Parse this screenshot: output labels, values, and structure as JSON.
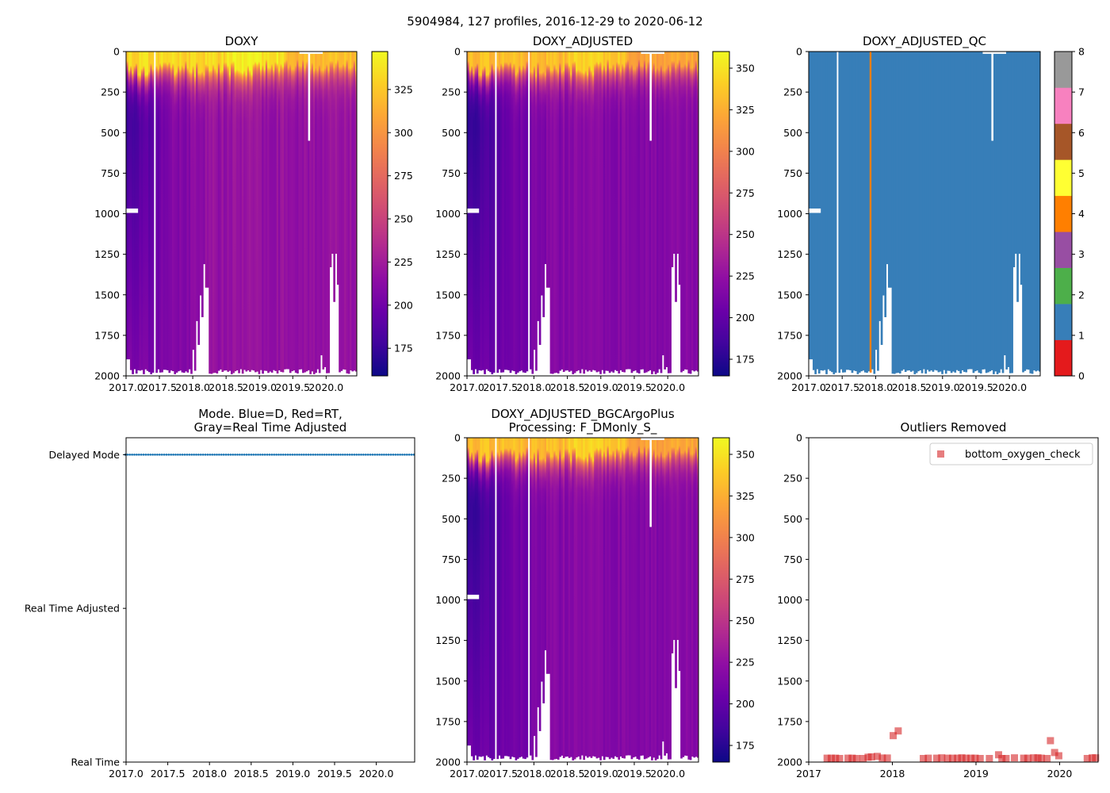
{
  "figure": {
    "title": "5904984, 127 profiles, 2016-12-29 to 2020-06-12"
  },
  "colors": {
    "qc": [
      "#e41a1c",
      "#377eb8",
      "#4daf4a",
      "#984ea3",
      "#ff7f00",
      "#ffff33",
      "#a65628",
      "#f781bf",
      "#999999"
    ],
    "mode_points": "#1f77b4",
    "outlier_marker": "#d62728",
    "plasma": [
      "#0d0887",
      "#41049d",
      "#6a00a8",
      "#8f0da4",
      "#b12a90",
      "#cc4778",
      "#e16462",
      "#f2844b",
      "#fca636",
      "#fcce25",
      "#f0f921"
    ]
  },
  "profiles": {
    "count": 127,
    "start": 2016.99,
    "end": 2020.45,
    "surface_value": 332,
    "deep_value_range": [
      200,
      218
    ],
    "early_mid_value": 175,
    "missing_profiles": [
      2017.43
    ],
    "qc4_profiles": [
      2017.92
    ],
    "short_profiles": [
      {
        "t": 2017.0,
        "max_pres": 1898
      },
      {
        "t": 2017.03,
        "max_pres": 1898
      },
      {
        "t": 2018.01,
        "max_pres": 1839
      },
      {
        "t": 2018.06,
        "max_pres": 1662
      },
      {
        "t": 2018.08,
        "max_pres": 1809
      },
      {
        "t": 2018.11,
        "max_pres": 1504
      },
      {
        "t": 2018.14,
        "max_pres": 1638
      },
      {
        "t": 2018.16,
        "max_pres": 1311
      },
      {
        "t": 2018.19,
        "max_pres": 1456
      },
      {
        "t": 2018.21,
        "max_pres": 1456
      },
      {
        "t": 2019.92,
        "max_pres": 1873
      },
      {
        "t": 2019.99,
        "max_pres": 1946
      },
      {
        "t": 2020.07,
        "max_pres": 1330
      },
      {
        "t": 2020.1,
        "max_pres": 1247
      },
      {
        "t": 2020.13,
        "max_pres": 1544
      },
      {
        "t": 2020.15,
        "max_pres": 1247
      },
      {
        "t": 2020.18,
        "max_pres": 1438
      }
    ],
    "partial_gaps": [
      {
        "t_start": 2019.73,
        "t_end": 2019.76,
        "from": 0,
        "to": 550
      },
      {
        "t_start": 2019.6,
        "t_end": 2019.95,
        "from": 0,
        "to": 14
      },
      {
        "t_start": 2017.0,
        "t_end": 2017.18,
        "from": 968,
        "to": 995
      }
    ]
  },
  "chart_data": [
    {
      "type": "heatmap",
      "title": "DOXY",
      "variable": "raw",
      "xlim": [
        2017.0,
        2020.46
      ],
      "ylim": [
        2000,
        0
      ],
      "xticks": [
        2017.0,
        2017.5,
        2018.0,
        2018.5,
        2019.0,
        2019.5,
        2020.0
      ],
      "xticklabels": [
        "2017.0",
        "2017.5",
        "2018.0",
        "2018.5",
        "2019.0",
        "2019.5",
        "2020.0"
      ],
      "yticks": [
        0,
        250,
        500,
        750,
        1000,
        1250,
        1500,
        1750,
        2000
      ],
      "yticklabels": [
        "0",
        "250",
        "500",
        "750",
        "1000",
        "1250",
        "1500",
        "1750",
        "2000"
      ],
      "colorbar": {
        "cmap": "plasma",
        "range": [
          159,
          347
        ],
        "ticks": [
          175,
          200,
          225,
          250,
          275,
          300,
          325
        ],
        "ticklabels": [
          "175",
          "200",
          "225",
          "250",
          "275",
          "300",
          "325"
        ]
      }
    },
    {
      "type": "heatmap",
      "title": "DOXY_ADJUSTED",
      "variable": "adjusted",
      "xlim": [
        2017.0,
        2020.46
      ],
      "ylim": [
        2000,
        0
      ],
      "xticks": [
        2017.0,
        2017.5,
        2018.0,
        2018.5,
        2019.0,
        2019.5,
        2020.0
      ],
      "xticklabels": [
        "2017.0",
        "2017.5",
        "2018.0",
        "2018.5",
        "2019.0",
        "2019.5",
        "2020.0"
      ],
      "yticks": [
        0,
        250,
        500,
        750,
        1000,
        1250,
        1500,
        1750,
        2000
      ],
      "yticklabels": [
        "0",
        "250",
        "500",
        "750",
        "1000",
        "1250",
        "1500",
        "1750",
        "2000"
      ],
      "colorbar": {
        "cmap": "plasma",
        "range": [
          165,
          360
        ],
        "ticks": [
          175,
          200,
          225,
          250,
          275,
          300,
          325,
          350
        ],
        "ticklabels": [
          "175",
          "200",
          "225",
          "250",
          "275",
          "300",
          "325",
          "350"
        ]
      }
    },
    {
      "type": "heatmap",
      "title": "DOXY_ADJUSTED_QC",
      "variable": "qc",
      "xlim": [
        2017.0,
        2020.46
      ],
      "ylim": [
        2000,
        0
      ],
      "xticks": [
        2017.0,
        2017.5,
        2018.0,
        2018.5,
        2019.0,
        2019.5,
        2020.0
      ],
      "xticklabels": [
        "2017.0",
        "2017.5",
        "2018.0",
        "2018.5",
        "2019.0",
        "2019.5",
        "2020.0"
      ],
      "yticks": [
        0,
        250,
        500,
        750,
        1000,
        1250,
        1500,
        1750,
        2000
      ],
      "yticklabels": [
        "0",
        "250",
        "500",
        "750",
        "1000",
        "1250",
        "1500",
        "1750",
        "2000"
      ],
      "colorbar": {
        "cmap": "Set1",
        "range": [
          0,
          8
        ],
        "ticks": [
          0,
          1,
          2,
          3,
          4,
          5,
          6,
          7,
          8
        ],
        "ticklabels": [
          "0",
          "1",
          "2",
          "3",
          "4",
          "5",
          "6",
          "7",
          "8"
        ]
      }
    },
    {
      "type": "scatter",
      "title": [
        "Mode. Blue=D, Red=RT,",
        "Gray=Real Time Adjusted"
      ],
      "variable": "mode",
      "xlim": [
        2017.0,
        2020.46
      ],
      "ylim": [
        0,
        2.11
      ],
      "xticks": [
        2017.0,
        2017.5,
        2018.0,
        2018.5,
        2019.0,
        2019.5,
        2020.0
      ],
      "xticklabels": [
        "2017.0",
        "2017.5",
        "2018.0",
        "2018.5",
        "2019.0",
        "2019.5",
        "2020.0"
      ],
      "yticks": [
        2,
        1,
        0
      ],
      "yticklabels": [
        "Delayed Mode",
        "Real Time Adjusted",
        "Real Time"
      ],
      "mode_value": 2
    },
    {
      "type": "heatmap",
      "title": [
        "DOXY_ADJUSTED_BGCArgoPlus",
        "Processing: F_DMonly_S_"
      ],
      "variable": "adjusted",
      "xlim": [
        2017.0,
        2020.46
      ],
      "ylim": [
        2000,
        0
      ],
      "xticks": [
        2017.0,
        2017.5,
        2018.0,
        2018.5,
        2019.0,
        2019.5,
        2020.0
      ],
      "xticklabels": [
        "2017.0",
        "2017.5",
        "2018.0",
        "2018.5",
        "2019.0",
        "2019.5",
        "2020.0"
      ],
      "yticks": [
        0,
        250,
        500,
        750,
        1000,
        1250,
        1500,
        1750,
        2000
      ],
      "yticklabels": [
        "0",
        "250",
        "500",
        "750",
        "1000",
        "1250",
        "1500",
        "1750",
        "2000"
      ],
      "colorbar": {
        "cmap": "plasma",
        "range": [
          165,
          360
        ],
        "ticks": [
          175,
          200,
          225,
          250,
          275,
          300,
          325,
          350
        ],
        "ticklabels": [
          "175",
          "200",
          "225",
          "250",
          "275",
          "300",
          "325",
          "350"
        ]
      }
    },
    {
      "type": "scatter",
      "title": "Outliers Removed",
      "variable": "outliers",
      "xlim": [
        2017.0,
        2020.46
      ],
      "ylim": [
        2000,
        0
      ],
      "xticks": [
        2017,
        2018,
        2019,
        2020
      ],
      "xticklabels": [
        "2017",
        "2018",
        "2019",
        "2020"
      ],
      "yticks": [
        0,
        250,
        500,
        750,
        1000,
        1250,
        1500,
        1750,
        2000
      ],
      "yticklabels": [
        "0",
        "250",
        "500",
        "750",
        "1000",
        "1250",
        "1500",
        "1750",
        "2000"
      ],
      "legend": {
        "label": "bottom_oxygen_check",
        "placement": "top-right"
      },
      "points": [
        [
          2017.22,
          1976
        ],
        [
          2017.27,
          1976
        ],
        [
          2017.32,
          1976
        ],
        [
          2017.37,
          1978
        ],
        [
          2017.47,
          1976
        ],
        [
          2017.52,
          1976
        ],
        [
          2017.57,
          1978
        ],
        [
          2017.65,
          1978
        ],
        [
          2017.71,
          1970
        ],
        [
          2017.75,
          1968
        ],
        [
          2017.82,
          1965
        ],
        [
          2017.88,
          1975
        ],
        [
          2017.94,
          1975
        ],
        [
          2018.01,
          1837
        ],
        [
          2018.07,
          1808
        ],
        [
          2018.37,
          1978
        ],
        [
          2018.43,
          1976
        ],
        [
          2018.53,
          1976
        ],
        [
          2018.59,
          1974
        ],
        [
          2018.66,
          1976
        ],
        [
          2018.72,
          1976
        ],
        [
          2018.78,
          1976
        ],
        [
          2018.83,
          1974
        ],
        [
          2018.88,
          1976
        ],
        [
          2018.94,
          1976
        ],
        [
          2018.99,
          1976
        ],
        [
          2019.05,
          1978
        ],
        [
          2019.16,
          1978
        ],
        [
          2019.27,
          1955
        ],
        [
          2019.31,
          1978
        ],
        [
          2019.36,
          1978
        ],
        [
          2019.46,
          1974
        ],
        [
          2019.57,
          1976
        ],
        [
          2019.62,
          1976
        ],
        [
          2019.69,
          1974
        ],
        [
          2019.74,
          1974
        ],
        [
          2019.78,
          1976
        ],
        [
          2019.85,
          1978
        ],
        [
          2019.89,
          1868
        ],
        [
          2019.94,
          1941
        ],
        [
          2019.99,
          1961
        ],
        [
          2020.33,
          1978
        ],
        [
          2020.39,
          1974
        ],
        [
          2020.43,
          1974
        ]
      ]
    }
  ]
}
